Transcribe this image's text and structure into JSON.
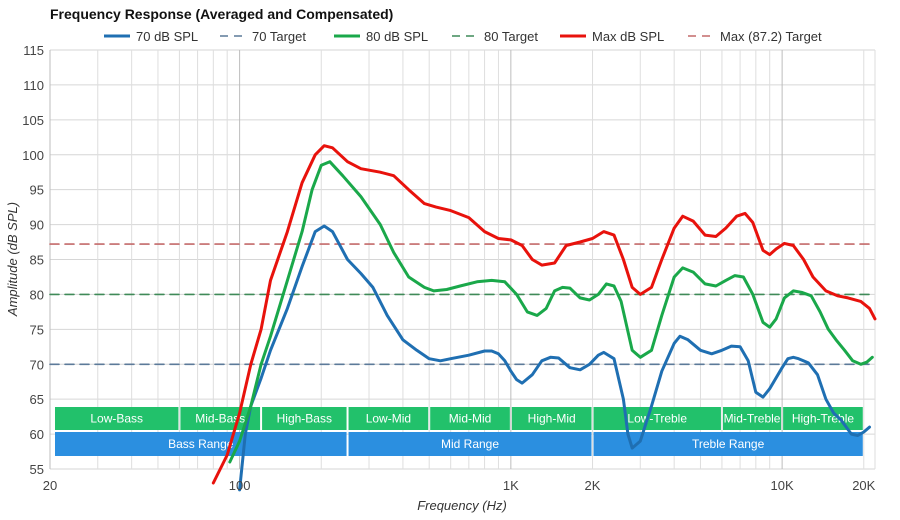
{
  "chart_data": {
    "type": "line",
    "title": "Frequency Response (Averaged and Compensated)",
    "xlabel": "Frequency (Hz)",
    "ylabel": "Amplitude (dB SPL)",
    "x_scale": "log",
    "xlim": [
      20,
      22000
    ],
    "ylim": [
      55,
      115
    ],
    "x_ticks": [
      {
        "value": 20,
        "label": "20"
      },
      {
        "value": 100,
        "label": "100"
      },
      {
        "value": 1000,
        "label": "1K"
      },
      {
        "value": 2000,
        "label": "2K"
      },
      {
        "value": 10000,
        "label": "10K"
      },
      {
        "value": 20000,
        "label": "20K"
      }
    ],
    "y_ticks": [
      55,
      60,
      65,
      70,
      75,
      80,
      85,
      90,
      95,
      100,
      105,
      110,
      115
    ],
    "grid": true,
    "legend_position": "top",
    "series": [
      {
        "name": "70 dB SPL",
        "color": "#1f6fb2",
        "style": "solid",
        "points": [
          [
            100,
            52
          ],
          [
            105,
            60
          ],
          [
            110,
            64
          ],
          [
            120,
            68
          ],
          [
            130,
            72
          ],
          [
            150,
            78
          ],
          [
            170,
            84
          ],
          [
            190,
            89
          ],
          [
            205,
            89.8
          ],
          [
            220,
            89
          ],
          [
            250,
            85
          ],
          [
            280,
            83
          ],
          [
            310,
            81
          ],
          [
            350,
            77
          ],
          [
            400,
            73.5
          ],
          [
            450,
            72
          ],
          [
            500,
            70.8
          ],
          [
            550,
            70.5
          ],
          [
            600,
            70.8
          ],
          [
            700,
            71.3
          ],
          [
            800,
            71.9
          ],
          [
            850,
            71.9
          ],
          [
            900,
            71.5
          ],
          [
            950,
            70.5
          ],
          [
            1000,
            69
          ],
          [
            1050,
            67.8
          ],
          [
            1100,
            67.3
          ],
          [
            1200,
            68.5
          ],
          [
            1300,
            70.5
          ],
          [
            1400,
            71
          ],
          [
            1500,
            70.9
          ],
          [
            1650,
            69.5
          ],
          [
            1800,
            69.2
          ],
          [
            1950,
            70
          ],
          [
            2100,
            71.3
          ],
          [
            2200,
            71.7
          ],
          [
            2400,
            70.8
          ],
          [
            2600,
            65
          ],
          [
            2700,
            60
          ],
          [
            2800,
            58
          ],
          [
            3000,
            59
          ],
          [
            3300,
            64
          ],
          [
            3600,
            69
          ],
          [
            4000,
            73
          ],
          [
            4200,
            74
          ],
          [
            4500,
            73.5
          ],
          [
            5000,
            72
          ],
          [
            5500,
            71.5
          ],
          [
            6000,
            72
          ],
          [
            6500,
            72.6
          ],
          [
            7000,
            72.5
          ],
          [
            7500,
            70.5
          ],
          [
            8000,
            66
          ],
          [
            8500,
            65.3
          ],
          [
            9000,
            66.5
          ],
          [
            10000,
            69.5
          ],
          [
            10500,
            70.8
          ],
          [
            11000,
            71
          ],
          [
            11500,
            70.8
          ],
          [
            12500,
            70.2
          ],
          [
            13500,
            68.5
          ],
          [
            14500,
            65
          ],
          [
            15500,
            63
          ],
          [
            16500,
            62
          ],
          [
            18000,
            60
          ],
          [
            19000,
            59.8
          ],
          [
            20000,
            60.3
          ],
          [
            21000,
            61
          ]
        ]
      },
      {
        "name": "70 Target",
        "color": "#5c7a99",
        "style": "dashed",
        "points": [
          [
            20,
            70
          ],
          [
            22000,
            70
          ]
        ]
      },
      {
        "name": "80 dB SPL",
        "color": "#1aa84a",
        "style": "solid",
        "points": [
          [
            92,
            56
          ],
          [
            100,
            59
          ],
          [
            110,
            64
          ],
          [
            120,
            70
          ],
          [
            130,
            74
          ],
          [
            150,
            82
          ],
          [
            170,
            89
          ],
          [
            185,
            95
          ],
          [
            200,
            98.5
          ],
          [
            215,
            99
          ],
          [
            240,
            97
          ],
          [
            280,
            94
          ],
          [
            330,
            90
          ],
          [
            370,
            86
          ],
          [
            420,
            82.5
          ],
          [
            480,
            81
          ],
          [
            520,
            80.5
          ],
          [
            580,
            80.7
          ],
          [
            650,
            81.2
          ],
          [
            750,
            81.8
          ],
          [
            850,
            82
          ],
          [
            950,
            81.8
          ],
          [
            1050,
            80
          ],
          [
            1150,
            77.5
          ],
          [
            1250,
            77
          ],
          [
            1350,
            78
          ],
          [
            1450,
            80.5
          ],
          [
            1550,
            81
          ],
          [
            1650,
            80.9
          ],
          [
            1800,
            79.5
          ],
          [
            1950,
            79.2
          ],
          [
            2100,
            80
          ],
          [
            2250,
            81.5
          ],
          [
            2400,
            81.2
          ],
          [
            2550,
            79
          ],
          [
            2800,
            72
          ],
          [
            3000,
            71
          ],
          [
            3300,
            72
          ],
          [
            3600,
            77
          ],
          [
            4000,
            82.5
          ],
          [
            4300,
            83.8
          ],
          [
            4700,
            83.2
          ],
          [
            5200,
            81.5
          ],
          [
            5700,
            81.2
          ],
          [
            6200,
            82
          ],
          [
            6700,
            82.7
          ],
          [
            7200,
            82.5
          ],
          [
            7800,
            80
          ],
          [
            8500,
            76
          ],
          [
            9000,
            75.3
          ],
          [
            9500,
            76.5
          ],
          [
            10200,
            79.5
          ],
          [
            11000,
            80.5
          ],
          [
            11800,
            80.3
          ],
          [
            12800,
            79.8
          ],
          [
            13800,
            77.5
          ],
          [
            14800,
            75
          ],
          [
            15800,
            73.5
          ],
          [
            17000,
            72
          ],
          [
            18200,
            70.5
          ],
          [
            19500,
            70
          ],
          [
            20500,
            70.3
          ],
          [
            21500,
            71
          ]
        ]
      },
      {
        "name": "80 Target",
        "color": "#3f8a58",
        "style": "dashed",
        "points": [
          [
            20,
            80
          ],
          [
            22000,
            80
          ]
        ]
      },
      {
        "name": "Max dB SPL",
        "color": "#e8120c",
        "style": "solid",
        "points": [
          [
            80,
            53
          ],
          [
            90,
            57
          ],
          [
            100,
            63
          ],
          [
            110,
            70
          ],
          [
            120,
            75
          ],
          [
            130,
            82
          ],
          [
            150,
            89
          ],
          [
            170,
            96
          ],
          [
            190,
            100
          ],
          [
            205,
            101.3
          ],
          [
            220,
            101
          ],
          [
            250,
            99
          ],
          [
            280,
            98
          ],
          [
            330,
            97.5
          ],
          [
            370,
            97
          ],
          [
            420,
            95
          ],
          [
            480,
            93
          ],
          [
            530,
            92.5
          ],
          [
            600,
            92
          ],
          [
            700,
            91
          ],
          [
            800,
            89
          ],
          [
            900,
            88
          ],
          [
            1000,
            87.8
          ],
          [
            1100,
            87
          ],
          [
            1200,
            85
          ],
          [
            1300,
            84.2
          ],
          [
            1450,
            84.5
          ],
          [
            1600,
            87
          ],
          [
            1800,
            87.5
          ],
          [
            2000,
            88
          ],
          [
            2200,
            89
          ],
          [
            2400,
            88.5
          ],
          [
            2600,
            85
          ],
          [
            2800,
            81
          ],
          [
            3000,
            80
          ],
          [
            3300,
            81
          ],
          [
            3600,
            85
          ],
          [
            4000,
            89.5
          ],
          [
            4300,
            91.2
          ],
          [
            4700,
            90.5
          ],
          [
            5200,
            88.5
          ],
          [
            5700,
            88.3
          ],
          [
            6200,
            89.5
          ],
          [
            6800,
            91.2
          ],
          [
            7300,
            91.6
          ],
          [
            7800,
            90.3
          ],
          [
            8500,
            86.3
          ],
          [
            9000,
            85.7
          ],
          [
            9500,
            86.5
          ],
          [
            10200,
            87.3
          ],
          [
            11000,
            87
          ],
          [
            12000,
            85
          ],
          [
            13000,
            82.5
          ],
          [
            14500,
            80.5
          ],
          [
            16000,
            79.8
          ],
          [
            17500,
            79.5
          ],
          [
            19500,
            79
          ],
          [
            21000,
            78
          ],
          [
            22000,
            76.5
          ]
        ]
      },
      {
        "name": "Max (87.2) Target",
        "color": "#c46a6a",
        "style": "dashed",
        "points": [
          [
            20,
            87.2
          ],
          [
            22000,
            87.2
          ]
        ]
      }
    ],
    "bands": [
      {
        "label": "Low-Bass",
        "row": 1,
        "from": 20,
        "to": 60,
        "color": "#22c16b"
      },
      {
        "label": "Mid-Bass",
        "row": 1,
        "from": 60,
        "to": 120,
        "color": "#22c16b"
      },
      {
        "label": "High-Bass",
        "row": 1,
        "from": 120,
        "to": 250,
        "color": "#22c16b"
      },
      {
        "label": "Low-Mid",
        "row": 1,
        "from": 250,
        "to": 500,
        "color": "#22c16b"
      },
      {
        "label": "Mid-Mid",
        "row": 1,
        "from": 500,
        "to": 1000,
        "color": "#22c16b"
      },
      {
        "label": "High-Mid",
        "row": 1,
        "from": 1000,
        "to": 2000,
        "color": "#22c16b"
      },
      {
        "label": "Low-Treble",
        "row": 1,
        "from": 2000,
        "to": 6000,
        "color": "#22c16b"
      },
      {
        "label": "Mid-Treble",
        "row": 1,
        "from": 6000,
        "to": 10000,
        "color": "#22c16b"
      },
      {
        "label": "High-Treble",
        "row": 1,
        "from": 10000,
        "to": 20000,
        "color": "#22c16b"
      },
      {
        "label": "Bass Range",
        "row": 2,
        "from": 20,
        "to": 250,
        "color": "#2b8fe0"
      },
      {
        "label": "Mid Range",
        "row": 2,
        "from": 250,
        "to": 2000,
        "color": "#2b8fe0"
      },
      {
        "label": "Treble Range",
        "row": 2,
        "from": 2000,
        "to": 20000,
        "color": "#2b8fe0"
      }
    ]
  }
}
